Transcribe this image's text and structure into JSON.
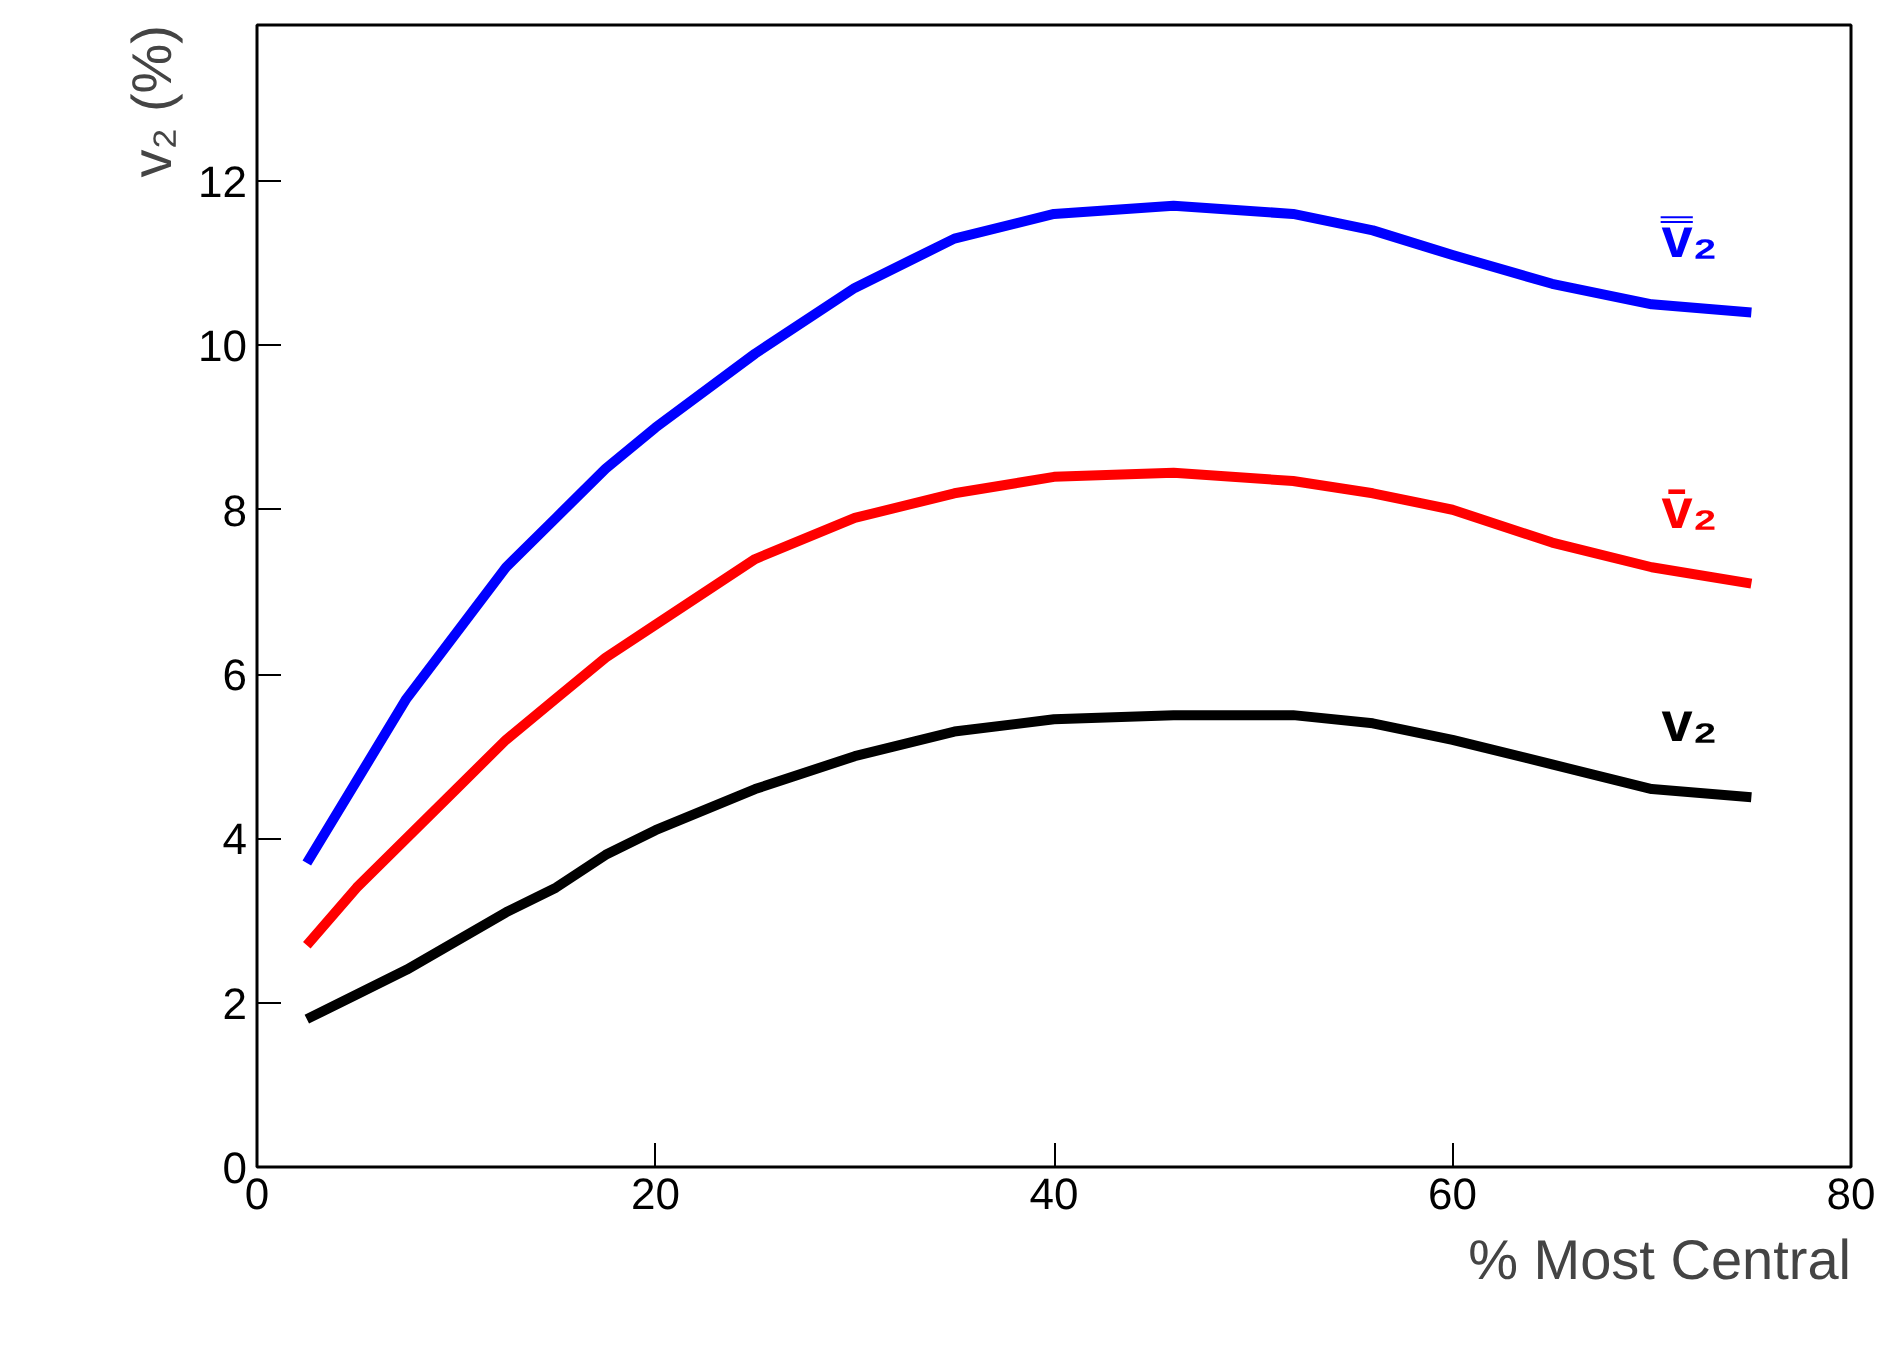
{
  "chart_data": {
    "type": "line",
    "xlabel": "% Most Central",
    "ylabel": "v₂ (%)",
    "x": [
      2.5,
      5,
      7.5,
      10,
      12.5,
      15,
      17.5,
      20,
      25,
      30,
      35,
      40,
      46,
      52,
      56,
      60,
      65,
      70,
      75
    ],
    "series": [
      {
        "name": "v̿₂",
        "color": "#0000ff",
        "values": [
          3.7,
          4.7,
          5.7,
          6.5,
          7.3,
          7.9,
          8.5,
          9.0,
          9.9,
          10.7,
          11.3,
          11.6,
          11.7,
          11.6,
          11.4,
          11.1,
          10.75,
          10.5,
          10.4
        ]
      },
      {
        "name": "v̄₂",
        "color": "#ff0000",
        "values": [
          2.7,
          3.4,
          4.0,
          4.6,
          5.2,
          5.7,
          6.2,
          6.6,
          7.4,
          7.9,
          8.2,
          8.4,
          8.45,
          8.35,
          8.2,
          8.0,
          7.6,
          7.3,
          7.1
        ]
      },
      {
        "name": "v₂",
        "color": "#000000",
        "values": [
          1.8,
          2.1,
          2.4,
          2.75,
          3.1,
          3.4,
          3.8,
          4.1,
          4.6,
          5.0,
          5.3,
          5.45,
          5.5,
          5.5,
          5.4,
          5.2,
          4.9,
          4.6,
          4.5
        ]
      }
    ],
    "xlim": [
      0,
      80
    ],
    "ylim": [
      0,
      13.9
    ],
    "xticks": [
      0,
      20,
      40,
      60,
      80
    ],
    "yticks": [
      0,
      2,
      4,
      6,
      8,
      10,
      12
    ],
    "grid": false,
    "marker": "none",
    "line_style": "solid"
  }
}
